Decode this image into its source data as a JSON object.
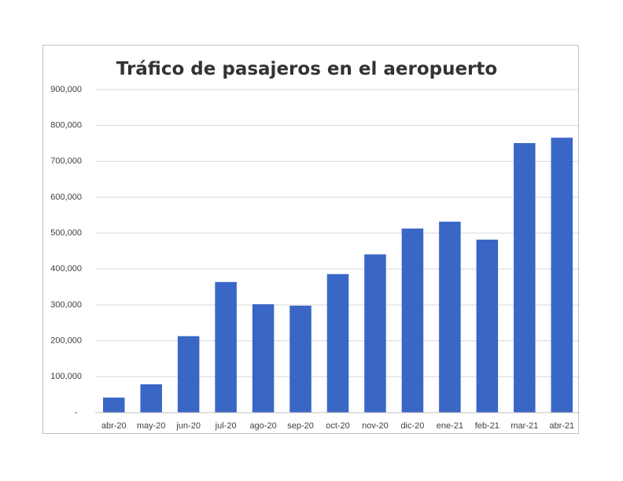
{
  "chart_data": {
    "type": "bar",
    "title": "Tráfico de pasajeros en el aeropuerto",
    "xlabel": "",
    "ylabel": "",
    "categories": [
      "abr-20",
      "may-20",
      "jun-20",
      "jul-20",
      "ago-20",
      "sep-20",
      "oct-20",
      "nov-20",
      "dic-20",
      "ene-21",
      "feb-21",
      "mar-21",
      "abr-21"
    ],
    "values": [
      42000,
      79000,
      213000,
      364000,
      302000,
      298000,
      386000,
      441000,
      513000,
      532000,
      482000,
      751000,
      766000
    ],
    "ylim": [
      0,
      900000
    ],
    "yticks": [
      0,
      100000,
      200000,
      300000,
      400000,
      500000,
      600000,
      700000,
      800000,
      900000
    ],
    "ytick_labels": [
      "-",
      "100,000",
      "200,000",
      "300,000",
      "400,000",
      "500,000",
      "600,000",
      "700,000",
      "800,000",
      "900,000"
    ],
    "grid": true,
    "legend": "none",
    "bar_color": "#3a66c6"
  }
}
